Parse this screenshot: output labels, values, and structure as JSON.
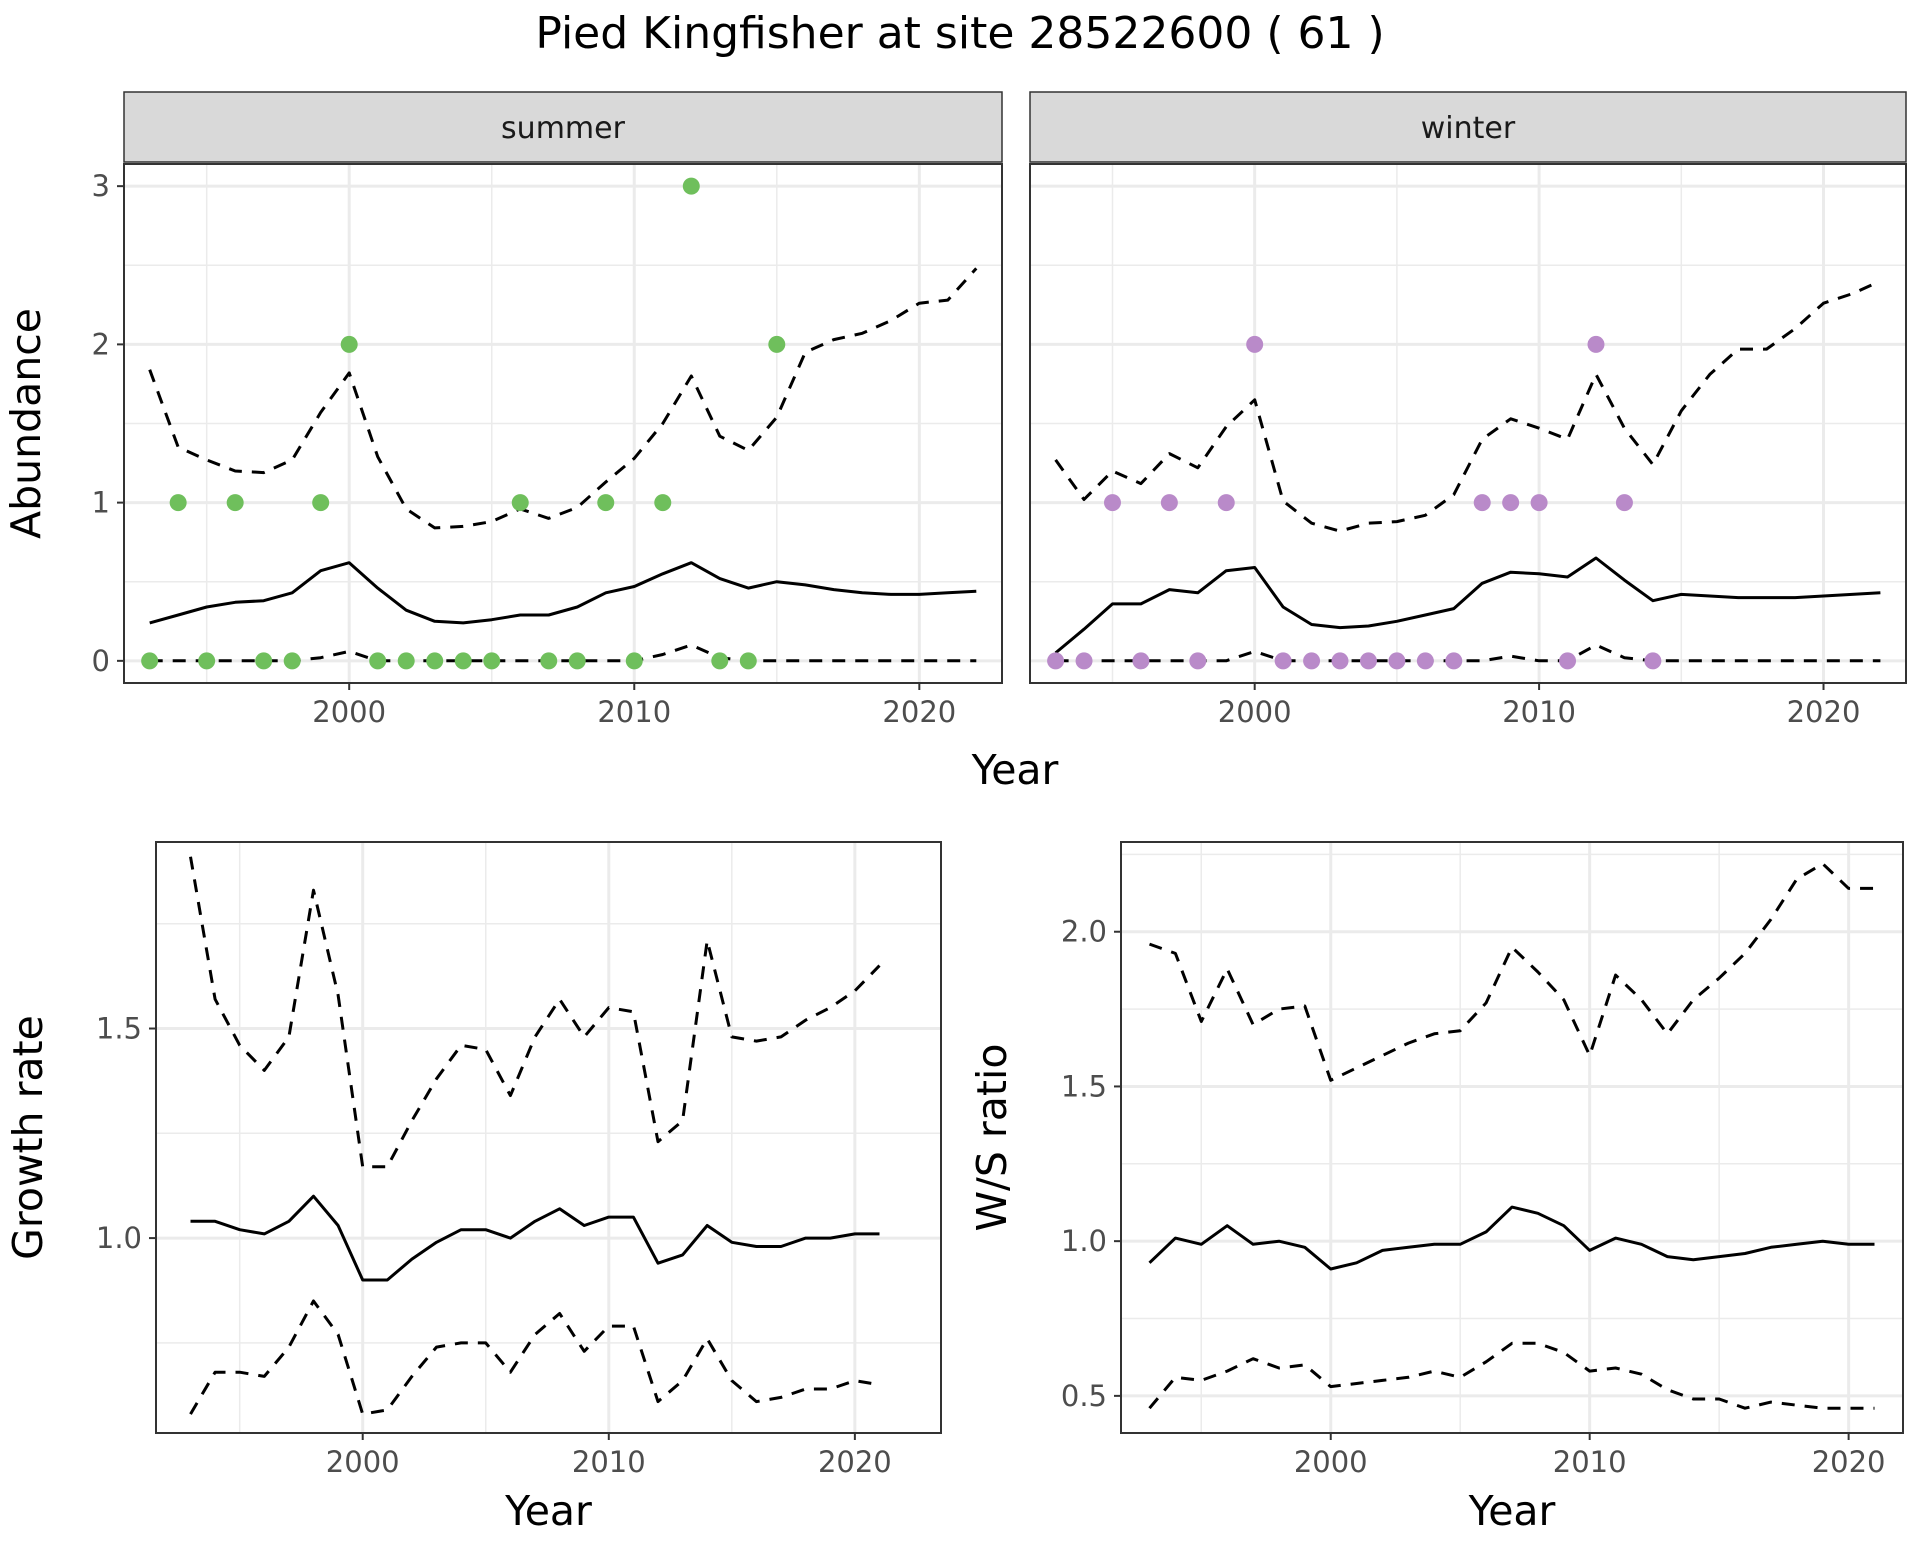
{
  "title": "Pied Kingfisher at site 28522600 ( 61 )",
  "colors": {
    "summer": "#6fbf5c",
    "winter": "#b98ac9",
    "line": "#000000",
    "grid": "#ebebeb",
    "strip_fill": "#d9d9d9"
  },
  "chart_data": [
    {
      "type": "line",
      "facet_strip": "summer",
      "xlabel": "Year",
      "ylabel": "Abundance",
      "xlim": [
        1992.1,
        2022.9
      ],
      "ylim": [
        -0.14,
        3.14
      ],
      "x_ticks": [
        2000,
        2010,
        2020
      ],
      "y_ticks": [
        0,
        1,
        2,
        3
      ],
      "grid": true,
      "x": [
        1993,
        1994,
        1995,
        1996,
        1997,
        1998,
        1999,
        2000,
        2001,
        2002,
        2003,
        2004,
        2005,
        2006,
        2007,
        2008,
        2009,
        2010,
        2011,
        2012,
        2013,
        2014,
        2015,
        2016,
        2017,
        2018,
        2019,
        2020,
        2021,
        2022
      ],
      "series": [
        {
          "role": "estimate",
          "style": "solid",
          "values": [
            0.24,
            0.29,
            0.34,
            0.37,
            0.38,
            0.43,
            0.57,
            0.62,
            0.46,
            0.32,
            0.25,
            0.24,
            0.26,
            0.29,
            0.29,
            0.34,
            0.43,
            0.47,
            0.55,
            0.62,
            0.52,
            0.46,
            0.5,
            0.48,
            0.45,
            0.43,
            0.42,
            0.42,
            0.43,
            0.44
          ]
        },
        {
          "role": "upper",
          "style": "dashed",
          "values": [
            1.84,
            1.35,
            1.27,
            1.2,
            1.19,
            1.27,
            1.57,
            1.82,
            1.29,
            0.96,
            0.84,
            0.85,
            0.88,
            0.96,
            0.9,
            0.97,
            1.13,
            1.28,
            1.5,
            1.8,
            1.42,
            1.33,
            1.54,
            1.95,
            2.03,
            2.07,
            2.15,
            2.26,
            2.28,
            2.48
          ]
        },
        {
          "role": "lower",
          "style": "dashed",
          "values": [
            0,
            0,
            0,
            0,
            0,
            0,
            0.02,
            0.06,
            0,
            0,
            0,
            0,
            0,
            0,
            0,
            0,
            0,
            0,
            0.04,
            0.1,
            0.02,
            0,
            0,
            0,
            0,
            0,
            0,
            0,
            0,
            0
          ]
        }
      ],
      "points": {
        "x": [
          1993,
          1994,
          1995,
          1996,
          1997,
          1998,
          1999,
          2000,
          2001,
          2002,
          2003,
          2004,
          2005,
          2006,
          2007,
          2008,
          2009,
          2010,
          2011,
          2012,
          2013,
          2014,
          2015
        ],
        "y": [
          0,
          1,
          0,
          1,
          0,
          0,
          1,
          2,
          0,
          0,
          0,
          0,
          0,
          1,
          0,
          0,
          1,
          0,
          1,
          3,
          0,
          0,
          2
        ]
      }
    },
    {
      "type": "line",
      "facet_strip": "winter",
      "xlabel": "Year",
      "ylabel": "Abundance",
      "xlim": [
        1992.1,
        2022.9
      ],
      "ylim": [
        -0.14,
        3.14
      ],
      "x_ticks": [
        2000,
        2010,
        2020
      ],
      "y_ticks": [
        0,
        1,
        2,
        3
      ],
      "grid": true,
      "x": [
        1993,
        1994,
        1995,
        1996,
        1997,
        1998,
        1999,
        2000,
        2001,
        2002,
        2003,
        2004,
        2005,
        2006,
        2007,
        2008,
        2009,
        2010,
        2011,
        2012,
        2013,
        2014,
        2015,
        2016,
        2017,
        2018,
        2019,
        2020,
        2021,
        2022
      ],
      "series": [
        {
          "role": "estimate",
          "style": "solid",
          "values": [
            0.05,
            0.2,
            0.36,
            0.36,
            0.45,
            0.43,
            0.57,
            0.59,
            0.34,
            0.23,
            0.21,
            0.22,
            0.25,
            0.29,
            0.33,
            0.49,
            0.56,
            0.55,
            0.53,
            0.65,
            0.51,
            0.38,
            0.42,
            0.41,
            0.4,
            0.4,
            0.4,
            0.41,
            0.42,
            0.43
          ]
        },
        {
          "role": "upper",
          "style": "dashed",
          "values": [
            1.27,
            1.02,
            1.2,
            1.12,
            1.31,
            1.22,
            1.48,
            1.65,
            1.01,
            0.87,
            0.82,
            0.87,
            0.88,
            0.92,
            1.05,
            1.4,
            1.53,
            1.47,
            1.4,
            1.81,
            1.47,
            1.24,
            1.58,
            1.81,
            1.97,
            1.97,
            2.1,
            2.26,
            2.32,
            2.4
          ]
        },
        {
          "role": "lower",
          "style": "dashed",
          "values": [
            0,
            0,
            0,
            0,
            0,
            0,
            0,
            0.06,
            0,
            0,
            0,
            0,
            0,
            0,
            0,
            0,
            0.03,
            0,
            0,
            0.1,
            0.02,
            0,
            0,
            0,
            0,
            0,
            0,
            0,
            0,
            0
          ]
        }
      ],
      "points": {
        "x": [
          1993,
          1994,
          1995,
          1996,
          1997,
          1998,
          1999,
          2000,
          2001,
          2002,
          2003,
          2004,
          2005,
          2006,
          2007,
          2008,
          2009,
          2010,
          2011,
          2012,
          2013,
          2014
        ],
        "y": [
          0,
          0,
          1,
          0,
          1,
          0,
          1,
          2,
          0,
          0,
          0,
          0,
          0,
          0,
          0,
          1,
          1,
          1,
          0,
          2,
          1,
          0
        ]
      }
    },
    {
      "type": "line",
      "xlabel": "Year",
      "ylabel": "Growth rate",
      "xlim": [
        1991.6,
        2023.5
      ],
      "ylim": [
        0.535,
        1.945
      ],
      "x_ticks": [
        2000,
        2010,
        2020
      ],
      "y_ticks": [
        1.0,
        1.5
      ],
      "y_tick_labels": [
        "1.0",
        "1.5"
      ],
      "grid": true,
      "x": [
        1993,
        1994,
        1995,
        1996,
        1997,
        1998,
        1999,
        2000,
        2001,
        2002,
        2003,
        2004,
        2005,
        2006,
        2007,
        2008,
        2009,
        2010,
        2011,
        2012,
        2013,
        2014,
        2015,
        2016,
        2017,
        2018,
        2019,
        2020,
        2021
      ],
      "series": [
        {
          "role": "estimate",
          "style": "solid",
          "values": [
            1.04,
            1.04,
            1.02,
            1.01,
            1.04,
            1.1,
            1.03,
            0.9,
            0.9,
            0.95,
            0.99,
            1.02,
            1.02,
            1.0,
            1.04,
            1.07,
            1.03,
            1.05,
            1.05,
            0.94,
            0.96,
            1.03,
            0.99,
            0.98,
            0.98,
            1.0,
            1.0,
            1.01,
            1.01
          ]
        },
        {
          "role": "upper",
          "style": "dashed",
          "values": [
            1.91,
            1.57,
            1.46,
            1.4,
            1.48,
            1.83,
            1.58,
            1.17,
            1.17,
            1.28,
            1.38,
            1.46,
            1.45,
            1.34,
            1.48,
            1.57,
            1.48,
            1.55,
            1.54,
            1.23,
            1.28,
            1.71,
            1.48,
            1.47,
            1.48,
            1.52,
            1.55,
            1.59,
            1.65
          ]
        },
        {
          "role": "lower",
          "style": "dashed",
          "values": [
            0.58,
            0.68,
            0.68,
            0.67,
            0.74,
            0.85,
            0.77,
            0.58,
            0.59,
            0.67,
            0.74,
            0.75,
            0.75,
            0.68,
            0.77,
            0.82,
            0.73,
            0.79,
            0.79,
            0.61,
            0.66,
            0.76,
            0.66,
            0.61,
            0.62,
            0.64,
            0.64,
            0.66,
            0.65
          ]
        }
      ]
    },
    {
      "type": "line",
      "xlabel": "Year",
      "ylabel": "W/S ratio",
      "xlim": [
        1991.9,
        2022.1
      ],
      "ylim": [
        0.38,
        2.29
      ],
      "x_ticks": [
        2000,
        2010,
        2020
      ],
      "y_ticks": [
        0.5,
        1.0,
        1.5,
        2.0
      ],
      "y_tick_labels": [
        "0.5",
        "1.0",
        "1.5",
        "2.0"
      ],
      "grid": true,
      "x": [
        1993,
        1994,
        1995,
        1996,
        1997,
        1998,
        1999,
        2000,
        2001,
        2002,
        2003,
        2004,
        2005,
        2006,
        2007,
        2008,
        2009,
        2010,
        2011,
        2012,
        2013,
        2014,
        2015,
        2016,
        2017,
        2018,
        2019,
        2020,
        2021
      ],
      "series": [
        {
          "role": "estimate",
          "style": "solid",
          "values": [
            0.93,
            1.01,
            0.99,
            1.05,
            0.99,
            1.0,
            0.98,
            0.91,
            0.93,
            0.97,
            0.98,
            0.99,
            0.99,
            1.03,
            1.11,
            1.09,
            1.05,
            0.97,
            1.01,
            0.99,
            0.95,
            0.94,
            0.95,
            0.96,
            0.98,
            0.99,
            1.0,
            0.99,
            0.99
          ]
        },
        {
          "role": "upper",
          "style": "dashed",
          "values": [
            1.96,
            1.93,
            1.71,
            1.88,
            1.7,
            1.75,
            1.76,
            1.52,
            1.56,
            1.6,
            1.64,
            1.67,
            1.68,
            1.77,
            1.95,
            1.87,
            1.78,
            1.6,
            1.86,
            1.78,
            1.67,
            1.78,
            1.85,
            1.93,
            2.04,
            2.17,
            2.22,
            2.14,
            2.14
          ]
        },
        {
          "role": "lower",
          "style": "dashed",
          "values": [
            0.46,
            0.56,
            0.55,
            0.58,
            0.62,
            0.59,
            0.6,
            0.53,
            0.54,
            0.55,
            0.56,
            0.58,
            0.56,
            0.61,
            0.67,
            0.67,
            0.64,
            0.58,
            0.59,
            0.57,
            0.52,
            0.49,
            0.49,
            0.46,
            0.48,
            0.47,
            0.46,
            0.46,
            0.46
          ]
        }
      ]
    }
  ]
}
